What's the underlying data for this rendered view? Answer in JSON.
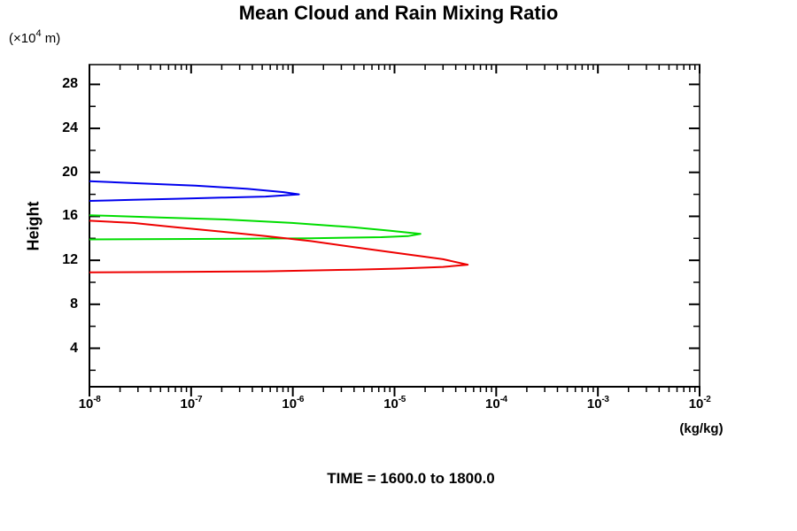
{
  "header": {
    "title": "Mean Cloud and Rain Mixing Ratio"
  },
  "footer": {
    "time_label": "TIME = 1600.0 to 1800.0"
  },
  "chart_data": {
    "type": "line",
    "title": "Mean Cloud and Rain Mixing Ratio",
    "annotation": "TIME = 1600.0 to 1800.0",
    "legend": "none",
    "grid": false,
    "x_axis": {
      "scale": "log",
      "unit_label": "(kg/kg)",
      "min": 1e-08,
      "max": 0.01,
      "decade_exponents": [
        -8,
        -7,
        -6,
        -5,
        -4,
        -3,
        -2
      ],
      "tick_label_base": "10",
      "minor_tick_multiples": [
        2,
        3,
        4,
        5,
        6,
        7,
        8,
        9
      ]
    },
    "y_axis": {
      "title": "Height",
      "unit_prefix": "(×10",
      "unit_exp": "4",
      "unit_suffix": " m)",
      "min": 0.5,
      "max": 29.8,
      "major_ticks": [
        28,
        24,
        20,
        16,
        12,
        8,
        4
      ],
      "minor_ticks": [
        26,
        22,
        18,
        14,
        10,
        6,
        2
      ]
    },
    "series": [
      {
        "name": "blue-profile",
        "color": "#0000ee",
        "points": [
          [
            1e-08,
            19.2
          ],
          [
            3.2e-08,
            19.0
          ],
          [
            1.1e-07,
            18.8
          ],
          [
            3.6e-07,
            18.5
          ],
          [
            8.1e-07,
            18.2
          ],
          [
            1.15e-06,
            18.0
          ],
          [
            5.4e-07,
            17.8
          ],
          [
            2e-07,
            17.7
          ],
          [
            7.2e-08,
            17.6
          ],
          [
            2.7e-08,
            17.5
          ],
          [
            1e-08,
            17.4
          ]
        ]
      },
      {
        "name": "green-profile",
        "color": "#00dd00",
        "points": [
          [
            1e-08,
            16.1
          ],
          [
            4.9e-08,
            15.9
          ],
          [
            2.4e-07,
            15.7
          ],
          [
            9.8e-07,
            15.4
          ],
          [
            4e-06,
            15.0
          ],
          [
            8.9e-06,
            14.7
          ],
          [
            1.8e-05,
            14.4
          ],
          [
            1.35e-05,
            14.2
          ],
          [
            7.4e-06,
            14.1
          ],
          [
            1.5e-06,
            14.0
          ],
          [
            2e-07,
            13.95
          ],
          [
            1e-08,
            13.9
          ]
        ]
      },
      {
        "name": "red-profile",
        "color": "#ee0000",
        "points": [
          [
            1e-08,
            15.6
          ],
          [
            2.7e-08,
            15.4
          ],
          [
            7.2e-08,
            15.0
          ],
          [
            2e-07,
            14.6
          ],
          [
            5.4e-07,
            14.2
          ],
          [
            1.5e-06,
            13.75
          ],
          [
            4e-06,
            13.2
          ],
          [
            1.1e-05,
            12.65
          ],
          [
            3e-05,
            12.1
          ],
          [
            5.25e-05,
            11.6
          ],
          [
            3e-05,
            11.4
          ],
          [
            1.1e-05,
            11.25
          ],
          [
            4e-06,
            11.15
          ],
          [
            5.4e-07,
            11.0
          ],
          [
            7.2e-08,
            10.95
          ],
          [
            1e-08,
            10.9
          ]
        ]
      }
    ]
  }
}
